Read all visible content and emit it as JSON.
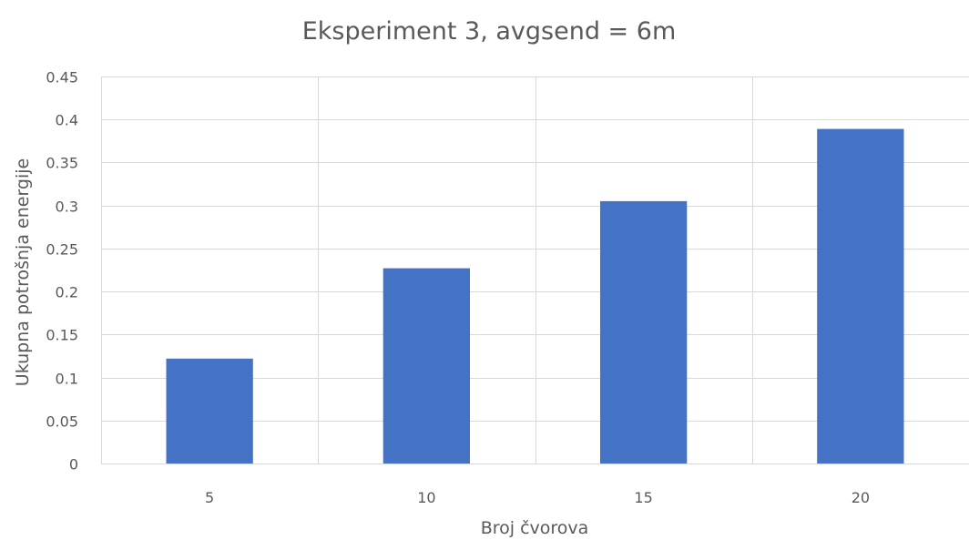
{
  "chart_data": {
    "type": "bar",
    "title": "Eksperiment 3, avgsend = 6m",
    "xlabel": "Broj čvorova",
    "ylabel": "Ukupna potrošnja energije",
    "categories": [
      "5",
      "10",
      "15",
      "20"
    ],
    "values": [
      0.122,
      0.227,
      0.305,
      0.389
    ],
    "ylim": [
      0,
      0.45
    ],
    "yticks": [
      "0",
      "0.05",
      "0.1",
      "0.15",
      "0.2",
      "0.25",
      "0.3",
      "0.35",
      "0.4",
      "0.45"
    ],
    "grid": true,
    "legend": "none",
    "bar_color": "#4472c4"
  }
}
